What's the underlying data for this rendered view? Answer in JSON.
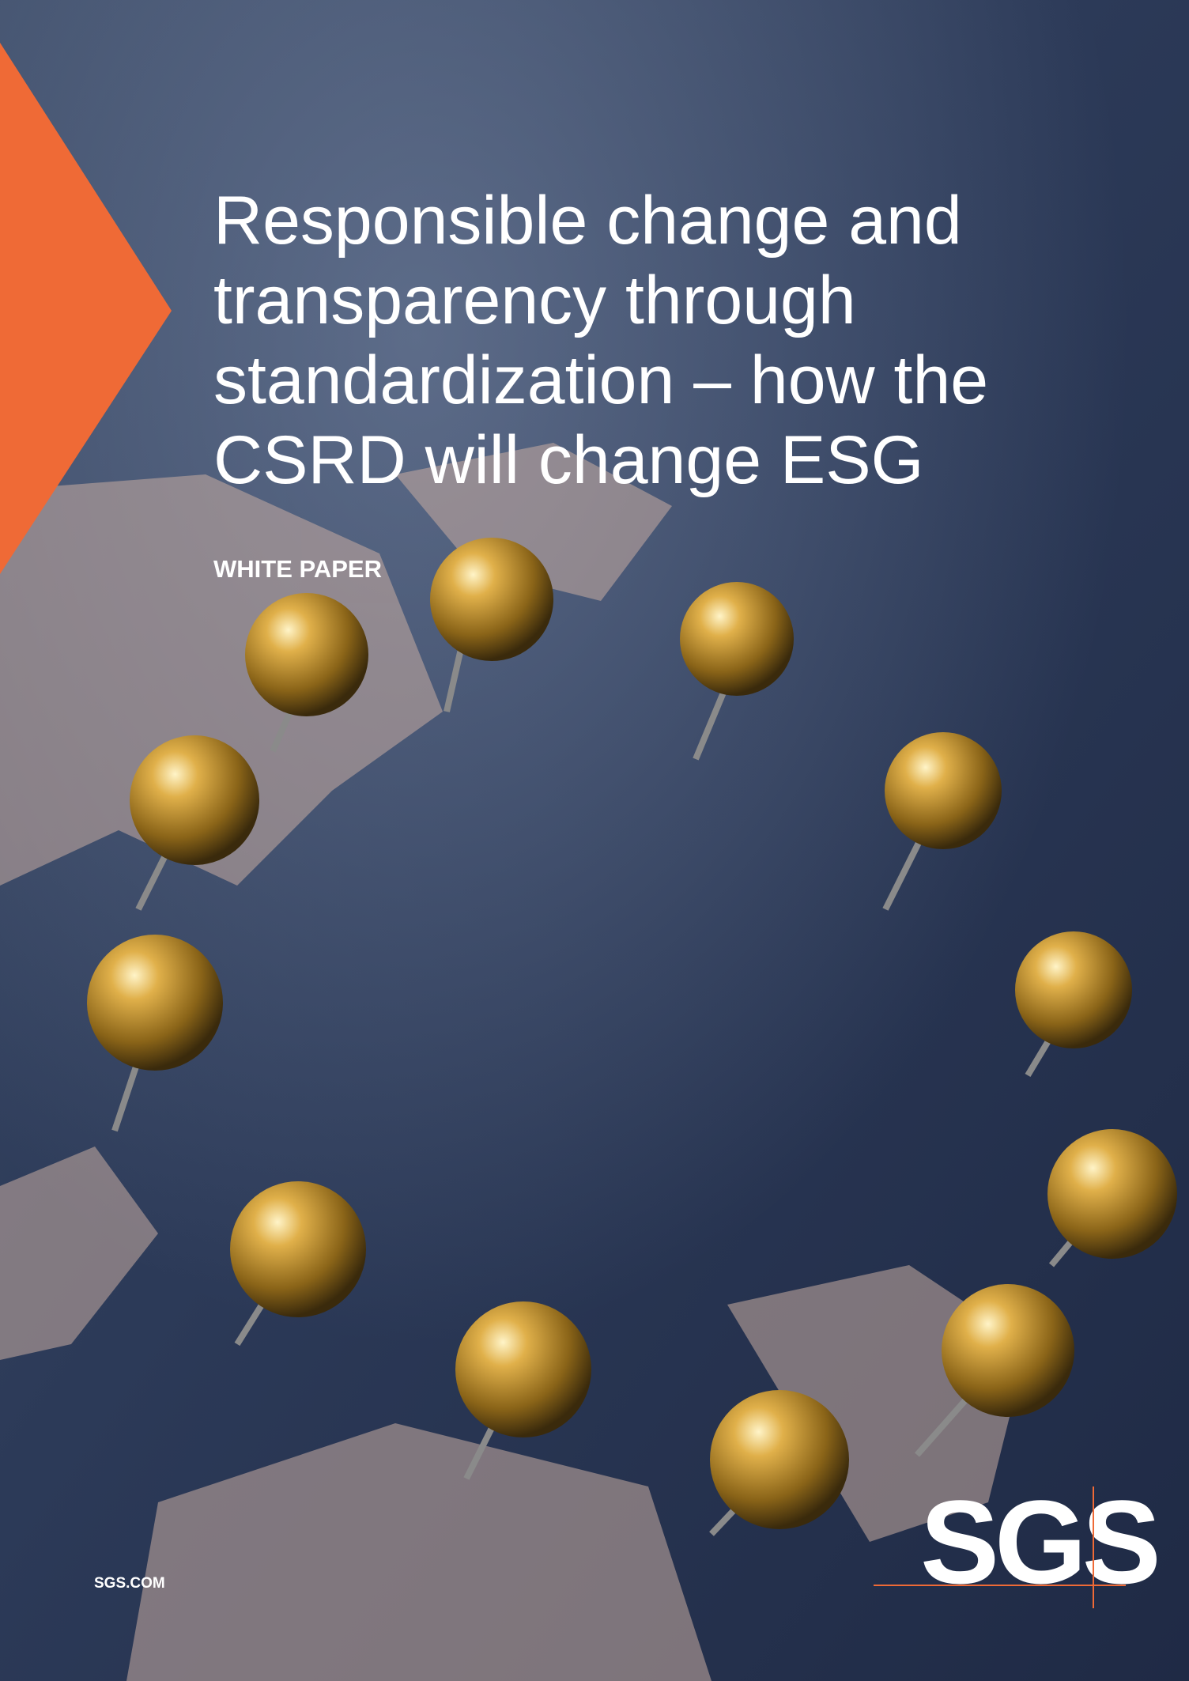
{
  "cover": {
    "title_lines": [
      "Responsible change and",
      "transparency through",
      "standardization – how the",
      "CSRD will change ESG"
    ],
    "label": "WHITE PAPER",
    "website": "SGS.COM",
    "logo": "SGS"
  }
}
